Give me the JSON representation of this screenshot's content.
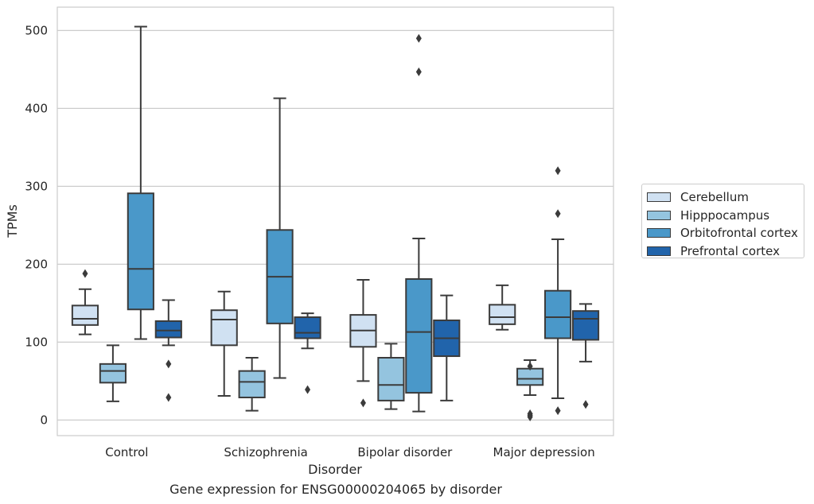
{
  "chart_data": {
    "type": "box",
    "title": "",
    "caption": "Gene expression for ENSG00000204065 by disorder",
    "xlabel": "Disorder",
    "ylabel": "TPMs",
    "ylim": [
      -20,
      530
    ],
    "yticks": [
      0,
      100,
      200,
      300,
      400,
      500
    ],
    "grid": "horizontal",
    "legend_position": "right",
    "categories": [
      "Control",
      "Schizophrenia",
      "Bipolar disorder",
      "Major depression"
    ],
    "series": [
      {
        "name": "Cerebellum",
        "color": "#d0e1f2",
        "boxes": [
          {
            "whisker_low": 110,
            "q1": 122,
            "median": 130,
            "q3": 147,
            "whisker_high": 168,
            "outliers": [
              188
            ]
          },
          {
            "whisker_low": 31,
            "q1": 96,
            "median": 129,
            "q3": 141,
            "whisker_high": 165,
            "outliers": []
          },
          {
            "whisker_low": 50,
            "q1": 94,
            "median": 115,
            "q3": 135,
            "whisker_high": 180,
            "outliers": [
              22
            ]
          },
          {
            "whisker_low": 116,
            "q1": 123,
            "median": 132,
            "q3": 148,
            "whisker_high": 173,
            "outliers": []
          }
        ]
      },
      {
        "name": "Hipppocampus",
        "color": "#94c4df",
        "boxes": [
          {
            "whisker_low": 24,
            "q1": 48,
            "median": 63,
            "q3": 72,
            "whisker_high": 96,
            "outliers": []
          },
          {
            "whisker_low": 12,
            "q1": 29,
            "median": 49,
            "q3": 63,
            "whisker_high": 80,
            "outliers": []
          },
          {
            "whisker_low": 14,
            "q1": 25,
            "median": 45,
            "q3": 80,
            "whisker_high": 98,
            "outliers": []
          },
          {
            "whisker_low": 32,
            "q1": 45,
            "median": 53,
            "q3": 66,
            "whisker_high": 77,
            "outliers": [
              6,
              8,
              4,
              69
            ]
          }
        ]
      },
      {
        "name": "Orbitofrontal cortex",
        "color": "#4a98c9",
        "boxes": [
          {
            "whisker_low": 104,
            "q1": 142,
            "median": 194,
            "q3": 291,
            "whisker_high": 505,
            "outliers": []
          },
          {
            "whisker_low": 54,
            "q1": 124,
            "median": 184,
            "q3": 244,
            "whisker_high": 413,
            "outliers": []
          },
          {
            "whisker_low": 11,
            "q1": 35,
            "median": 113,
            "q3": 181,
            "whisker_high": 233,
            "outliers": [
              447,
              490
            ]
          },
          {
            "whisker_low": 28,
            "q1": 105,
            "median": 132,
            "q3": 166,
            "whisker_high": 232,
            "outliers": [
              12,
              265,
              320
            ]
          }
        ]
      },
      {
        "name": "Prefrontal cortex",
        "color": "#2164ab",
        "boxes": [
          {
            "whisker_low": 96,
            "q1": 106,
            "median": 115,
            "q3": 127,
            "whisker_high": 154,
            "outliers": [
              29,
              72
            ]
          },
          {
            "whisker_low": 92,
            "q1": 105,
            "median": 112,
            "q3": 132,
            "whisker_high": 137,
            "outliers": [
              39
            ]
          },
          {
            "whisker_low": 25,
            "q1": 82,
            "median": 105,
            "q3": 128,
            "whisker_high": 160,
            "outliers": []
          },
          {
            "whisker_low": 75,
            "q1": 103,
            "median": 130,
            "q3": 140,
            "whisker_high": 149,
            "outliers": [
              20
            ]
          }
        ]
      }
    ]
  }
}
